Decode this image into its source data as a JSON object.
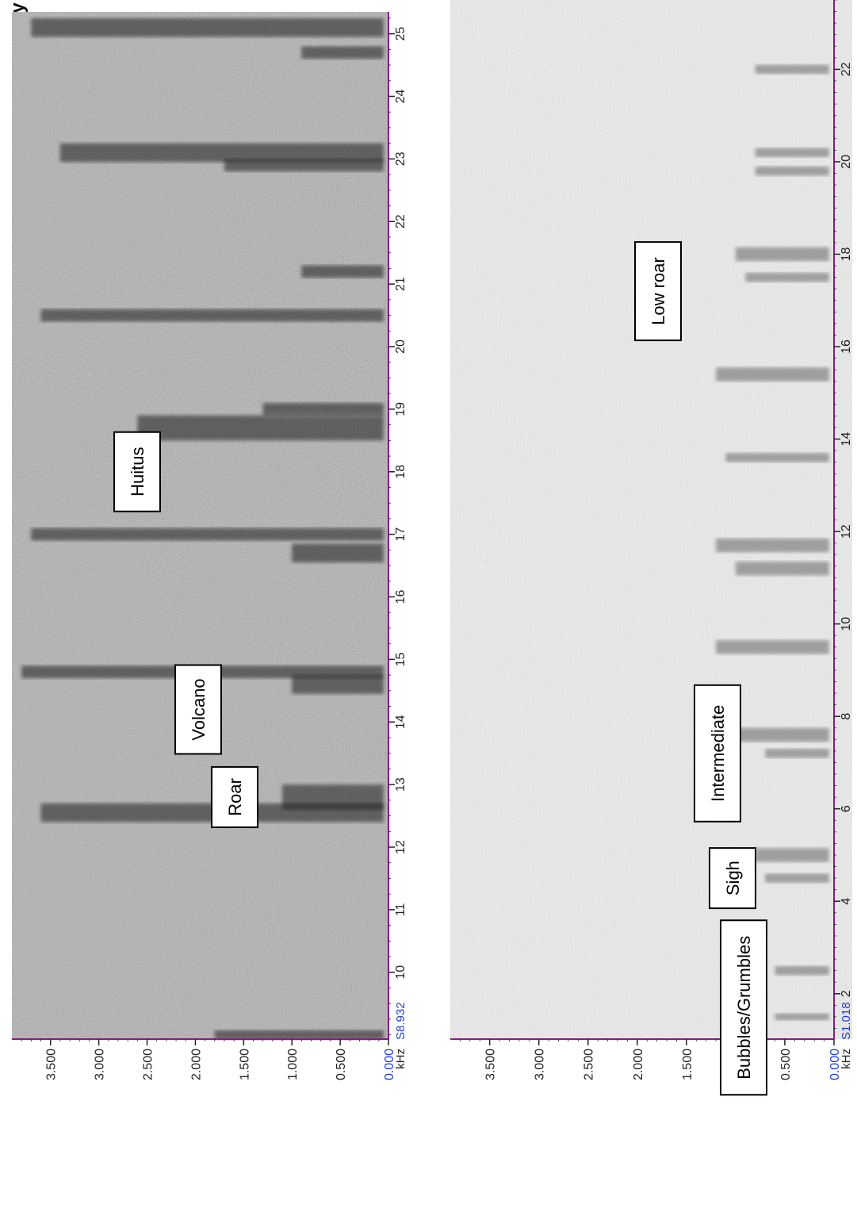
{
  "page": {
    "corner_label": "ency (H"
  },
  "colors": {
    "frame_magenta": "#8b1a8b",
    "axis_blue": "#1f3fd6",
    "tick_black": "#222222",
    "label_box_border": "#000000",
    "panel1_background": "#7e7e7e",
    "panel2_background": "#dcdcdc",
    "call_marks": "#1c1c1c"
  },
  "chart_data": [
    {
      "type": "heatmap",
      "name": "Spectrogram 1",
      "frequency_axis": {
        "unit": "kHz",
        "range": [
          0,
          3.9
        ],
        "ticks": [
          "0.000",
          "0.500",
          "1.000",
          "1.500",
          "2.000",
          "2.500",
          "3.000",
          "3.500"
        ],
        "zero_label_color": "blue"
      },
      "time_axis": {
        "unit": "s",
        "start_label": "S8.932",
        "range": [
          8.932,
          25.35
        ],
        "ticks": [
          "10",
          "11",
          "12",
          "13",
          "14",
          "15",
          "16",
          "17",
          "18",
          "19",
          "20",
          "21",
          "22",
          "23",
          "24",
          "25"
        ]
      },
      "annotations": [
        {
          "label": "Roar",
          "time": 12.8
        },
        {
          "label": "Volcano",
          "time": 14.2
        },
        {
          "label": "Huitus",
          "time": 18.0
        }
      ]
    },
    {
      "type": "heatmap",
      "name": "Spectrogram 2",
      "frequency_axis": {
        "unit": "kHz",
        "range": [
          0,
          3.9
        ],
        "ticks": [
          "0.000",
          "0.500",
          "1.000",
          "1.500",
          "2.000",
          "2.500",
          "3.000",
          "3.500"
        ],
        "zero_label_color": "blue"
      },
      "time_axis": {
        "unit": "s",
        "start_label": "S1.018",
        "range": [
          1.018,
          23.5
        ],
        "ticks": [
          "2",
          "4",
          "6",
          "8",
          "10",
          "12",
          "14",
          "16",
          "18",
          "20",
          "22"
        ]
      },
      "annotations": [
        {
          "label": "Bubbles/Grumbles",
          "time": 1.7
        },
        {
          "label": "Sigh",
          "time": 4.5
        },
        {
          "label": "Intermediate",
          "time": 7.2
        },
        {
          "label": "Low roar",
          "time": 17.2
        }
      ]
    }
  ]
}
